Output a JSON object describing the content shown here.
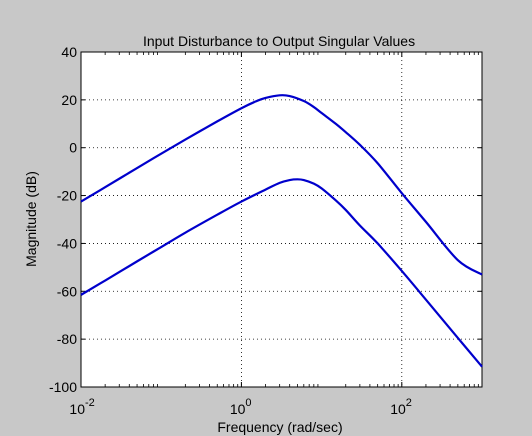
{
  "chart_data": {
    "type": "line",
    "title": "Input Disturbance to Output Singular Values",
    "xlabel": "Frequency (rad/sec)",
    "ylabel": "Magnitude (dB)",
    "xscale": "log",
    "xlim": [
      0.01,
      1000
    ],
    "ylim": [
      -100,
      40
    ],
    "grid": true,
    "xticks": [
      {
        "value": 0.01,
        "base": "10",
        "exp": "-2"
      },
      {
        "value": 1,
        "base": "10",
        "exp": "0"
      },
      {
        "value": 100,
        "base": "10",
        "exp": "2"
      }
    ],
    "yticks": [
      40,
      20,
      0,
      -20,
      -40,
      -60,
      -80,
      -100
    ],
    "line_color": "#0000cc",
    "series": [
      {
        "x": [
          0.01,
          0.02,
          0.05,
          0.1,
          0.2,
          0.5,
          1,
          1.5,
          2,
          3,
          4,
          6,
          8,
          10,
          15,
          20,
          30,
          50,
          100,
          200,
          500,
          1000
        ],
        "values": [
          -22.5,
          -16.5,
          -8.5,
          -2.5,
          3.4,
          11,
          16.5,
          19.3,
          20.8,
          21.9,
          21.6,
          19.5,
          17,
          14.5,
          10,
          6.5,
          1.2,
          -6.5,
          -19,
          -31,
          -47,
          -53
        ]
      },
      {
        "x": [
          0.01,
          0.02,
          0.05,
          0.1,
          0.2,
          0.5,
          1,
          2,
          3,
          4,
          5,
          6,
          8,
          10,
          15,
          20,
          30,
          50,
          100,
          200,
          500,
          1000
        ],
        "values": [
          -61.5,
          -55.5,
          -47.5,
          -41.5,
          -35.5,
          -28,
          -22.5,
          -17.5,
          -14.7,
          -13.5,
          -13.2,
          -13.5,
          -15,
          -17,
          -22,
          -26,
          -32.5,
          -40,
          -51.5,
          -63.5,
          -79.5,
          -91.5
        ]
      }
    ]
  }
}
